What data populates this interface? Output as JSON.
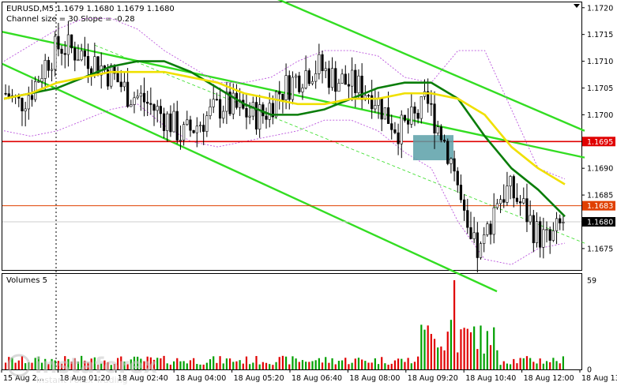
{
  "chart_data": {
    "type": "candlestick",
    "header": {
      "symbol_info": "EURUSD,M5  1.1679 1.1680 1.1679 1.1680",
      "channel_info": "Channel size = 30 Slope = -0.28"
    },
    "price_axis": {
      "range": [
        1.1671,
        1.1721
      ],
      "ticks": [
        "1.1720",
        "1.1715",
        "1.1710",
        "1.1705",
        "1.1700",
        "1.1690",
        "1.1685",
        "1.1675"
      ]
    },
    "levels": [
      {
        "name": "resistance",
        "value": 1.1695,
        "label": "1.1695",
        "color": "#e00000"
      },
      {
        "name": "support",
        "value": 1.1683,
        "label": "1.1683",
        "color": "#e04000"
      },
      {
        "name": "current-price",
        "value": 1.168,
        "label": "1.1680",
        "color": "#000000"
      }
    ],
    "time_axis": {
      "ticks": [
        "15 Aug 2...",
        "18 Aug 01:20",
        "18 Aug 02:40",
        "18 Aug 04:00",
        "18 Aug 05:20",
        "18 Aug 06:40",
        "18 Aug 08:00",
        "18 Aug 09:20",
        "18 Aug 10:40",
        "18 Aug 12:00",
        "18 Aug 13:20"
      ]
    },
    "volume_panel": {
      "title": "Volumes 5",
      "ticks": [
        "59",
        "0"
      ],
      "range": [
        0,
        59
      ],
      "color_up": "#00a000",
      "color_down": "#e00000"
    },
    "series": [
      {
        "name": "MA-green",
        "color": "#0a7d0a",
        "values": [
          1.1703,
          1.1704,
          1.1705,
          1.1707,
          1.1709,
          1.171,
          1.171,
          1.1708,
          1.1705,
          1.1702,
          1.17,
          1.17,
          1.1701,
          1.1703,
          1.1705,
          1.1706,
          1.1706,
          1.1703,
          1.1696,
          1.169,
          1.1686,
          1.1681
        ]
      },
      {
        "name": "MA-yellow",
        "color": "#f0e000",
        "values": [
          1.1703,
          1.1704,
          1.1706,
          1.1707,
          1.1708,
          1.1708,
          1.1708,
          1.1707,
          1.1706,
          1.1704,
          1.1703,
          1.1702,
          1.1702,
          1.1703,
          1.1703,
          1.1704,
          1.1704,
          1.1703,
          1.17,
          1.1694,
          1.169,
          1.1687
        ]
      }
    ],
    "watermark": {
      "brand": "instaforex",
      "tagline": "Instant Forex Trading"
    },
    "colors": {
      "candle": "#000000",
      "channel": "#33dd22",
      "envelope": "#bb55dd",
      "highlight": "#5aa0a8"
    }
  }
}
